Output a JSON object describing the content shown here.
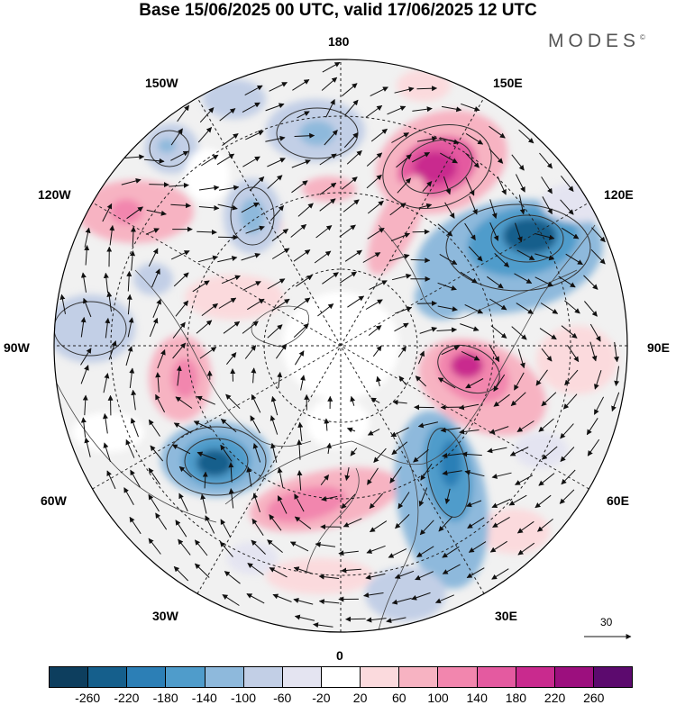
{
  "title": "Base 15/06/2025 00 UTC, valid 17/06/2025 12 UTC",
  "brand": "MODES",
  "brand_mark": "©",
  "longitude_labels": {
    "lon_180": "180",
    "lon_150e": "150E",
    "lon_120e": "120E",
    "lon_90e": "90E",
    "lon_60e": "60E",
    "lon_30e": "30E",
    "lon_0": "0",
    "lon_30w": "30W",
    "lon_60w": "60W",
    "lon_90w": "90W",
    "lon_120w": "120W",
    "lon_150w": "150W"
  },
  "colorbar": {
    "colors": [
      "#0d3e5e",
      "#155f8c",
      "#2c7fb6",
      "#4f9ccb",
      "#8eb9dc",
      "#c2cfe6",
      "#e4e4f1",
      "#ffffff",
      "#fbdadd",
      "#f7b3c2",
      "#f286ae",
      "#e45aa0",
      "#c92a8e",
      "#9c0f7e",
      "#5c0a6e"
    ],
    "ticks": [
      "-260",
      "-220",
      "-180",
      "-140",
      "-100",
      "-60",
      "-20",
      "20",
      "60",
      "100",
      "140",
      "180",
      "220",
      "260"
    ]
  },
  "reference_vector": {
    "label": "30"
  }
}
